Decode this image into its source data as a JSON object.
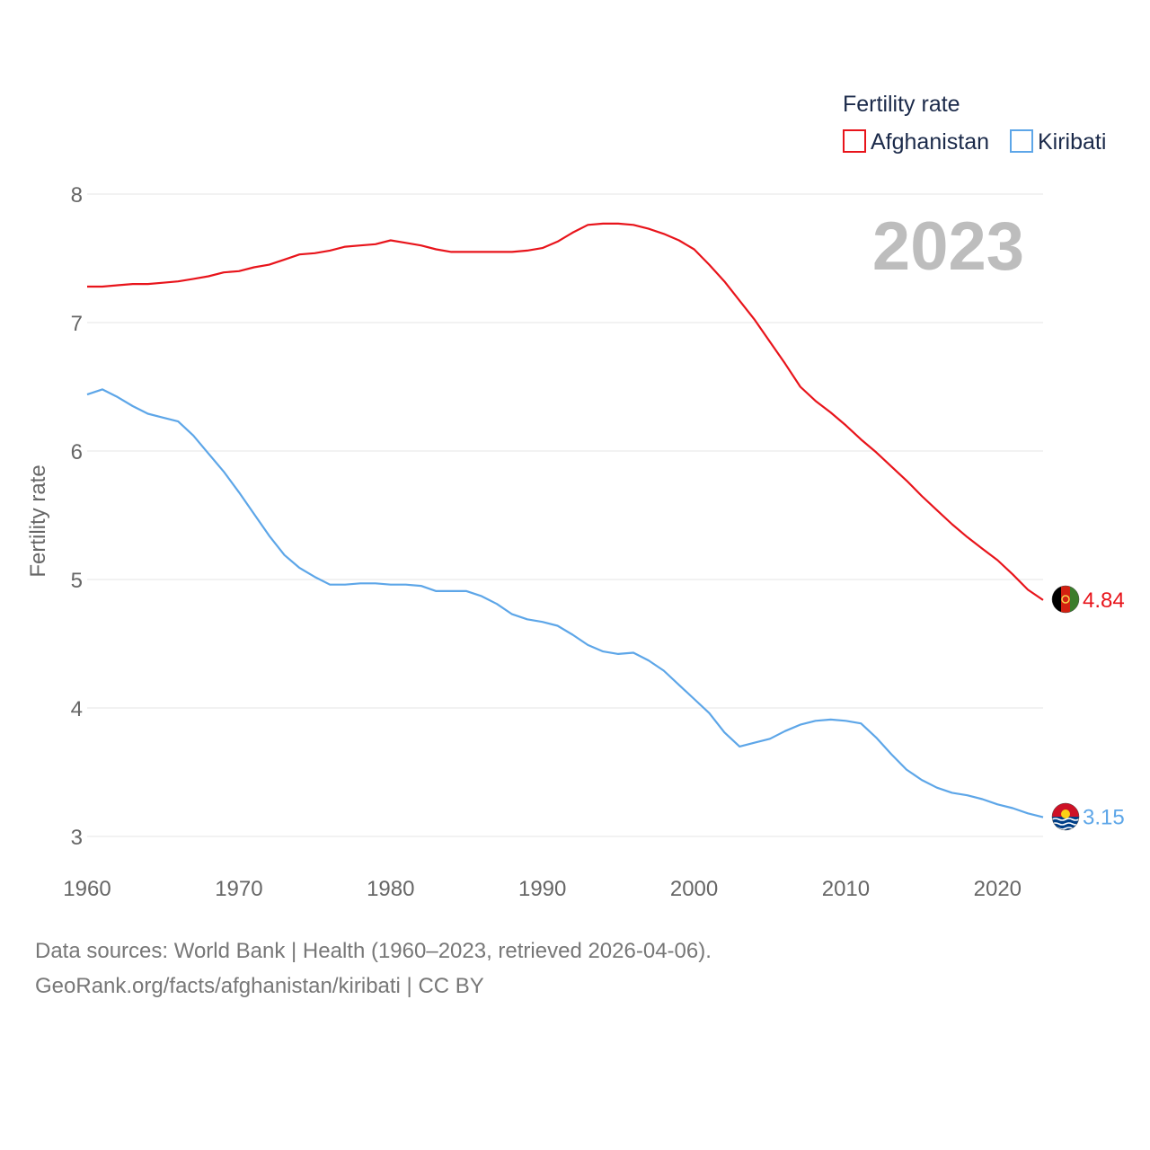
{
  "chart_data": {
    "type": "line",
    "title": "",
    "xlabel": "",
    "ylabel": "Fertility rate",
    "xlim": [
      1960,
      2023
    ],
    "ylim": [
      3,
      8
    ],
    "xticks": [
      "1960",
      "1970",
      "1980",
      "1990",
      "2000",
      "2010",
      "2020"
    ],
    "yticks": [
      "3",
      "4",
      "5",
      "6",
      "7",
      "8"
    ],
    "year_label": "2023",
    "legend_title": "Fertility rate",
    "legend_position": "top-right",
    "x": [
      1960,
      1961,
      1962,
      1963,
      1964,
      1965,
      1966,
      1967,
      1968,
      1969,
      1970,
      1971,
      1972,
      1973,
      1974,
      1975,
      1976,
      1977,
      1978,
      1979,
      1980,
      1981,
      1982,
      1983,
      1984,
      1985,
      1986,
      1987,
      1988,
      1989,
      1990,
      1991,
      1992,
      1993,
      1994,
      1995,
      1996,
      1997,
      1998,
      1999,
      2000,
      2001,
      2002,
      2003,
      2004,
      2005,
      2006,
      2007,
      2008,
      2009,
      2010,
      2011,
      2012,
      2013,
      2014,
      2015,
      2016,
      2017,
      2018,
      2019,
      2020,
      2021,
      2022,
      2023
    ],
    "series": [
      {
        "name": "Afghanistan",
        "color": "#e8141b",
        "end_label": "4.84",
        "values": [
          7.28,
          7.28,
          7.29,
          7.3,
          7.3,
          7.31,
          7.32,
          7.34,
          7.36,
          7.39,
          7.4,
          7.43,
          7.45,
          7.49,
          7.53,
          7.54,
          7.56,
          7.59,
          7.6,
          7.61,
          7.64,
          7.62,
          7.6,
          7.57,
          7.55,
          7.55,
          7.55,
          7.55,
          7.55,
          7.56,
          7.58,
          7.63,
          7.7,
          7.76,
          7.77,
          7.77,
          7.76,
          7.73,
          7.69,
          7.64,
          7.57,
          7.45,
          7.32,
          7.17,
          7.02,
          6.85,
          6.68,
          6.5,
          6.39,
          6.3,
          6.2,
          6.09,
          5.99,
          5.88,
          5.77,
          5.65,
          5.54,
          5.43,
          5.33,
          5.24,
          5.15,
          5.04,
          4.92,
          4.84
        ]
      },
      {
        "name": "Kiribati",
        "color": "#5da6e8",
        "end_label": "3.15",
        "values": [
          6.44,
          6.48,
          6.42,
          6.35,
          6.29,
          6.26,
          6.23,
          6.12,
          5.98,
          5.84,
          5.68,
          5.51,
          5.34,
          5.19,
          5.09,
          5.02,
          4.96,
          4.96,
          4.97,
          4.97,
          4.96,
          4.96,
          4.95,
          4.91,
          4.91,
          4.91,
          4.87,
          4.81,
          4.73,
          4.69,
          4.67,
          4.64,
          4.57,
          4.49,
          4.44,
          4.42,
          4.43,
          4.37,
          4.29,
          4.18,
          4.07,
          3.96,
          3.81,
          3.7,
          3.73,
          3.76,
          3.82,
          3.87,
          3.9,
          3.91,
          3.9,
          3.88,
          3.77,
          3.64,
          3.52,
          3.44,
          3.38,
          3.34,
          3.32,
          3.29,
          3.25,
          3.22,
          3.18,
          3.15
        ]
      }
    ]
  },
  "footer": {
    "sources": "Data sources: World Bank | Health (1960–2023, retrieved 2026-04-06).",
    "attribution": "GeoRank.org/facts/afghanistan/kiribati | CC BY"
  }
}
